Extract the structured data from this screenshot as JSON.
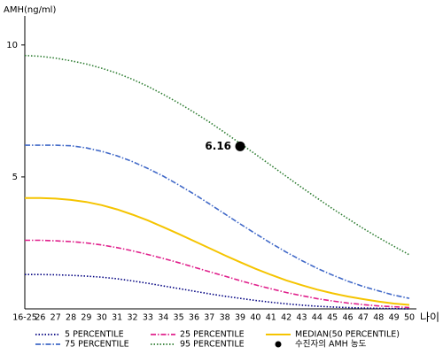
{
  "chart_data": {
    "type": "line",
    "y_label": "AMH(ng/ml)",
    "x_label": "나이",
    "categories": [
      "16-25",
      "26",
      "27",
      "28",
      "29",
      "30",
      "31",
      "32",
      "33",
      "34",
      "35",
      "36",
      "37",
      "38",
      "39",
      "40",
      "41",
      "42",
      "43",
      "44",
      "45",
      "46",
      "47",
      "48",
      "49",
      "50"
    ],
    "ylim": [
      0,
      11
    ],
    "yticks": [
      5,
      10
    ],
    "series": [
      {
        "name": "5 PERCENTILE",
        "color": "#000080",
        "style": "dotted",
        "values": [
          1.3,
          1.3,
          1.29,
          1.27,
          1.24,
          1.2,
          1.14,
          1.06,
          0.97,
          0.87,
          0.77,
          0.67,
          0.57,
          0.48,
          0.4,
          0.32,
          0.25,
          0.19,
          0.14,
          0.1,
          0.07,
          0.05,
          0.03,
          0.02,
          0.01,
          0.0
        ]
      },
      {
        "name": "25 PERCENTILE",
        "color": "#e0208c",
        "style": "dashdot",
        "values": [
          2.6,
          2.6,
          2.58,
          2.55,
          2.5,
          2.42,
          2.32,
          2.2,
          2.06,
          1.91,
          1.75,
          1.58,
          1.41,
          1.24,
          1.07,
          0.91,
          0.76,
          0.62,
          0.5,
          0.39,
          0.3,
          0.22,
          0.16,
          0.11,
          0.08,
          0.05
        ]
      },
      {
        "name": "MEDIAN(50 PERCENTILE)",
        "color": "#f5c400",
        "style": "solid",
        "values": [
          4.2,
          4.2,
          4.18,
          4.13,
          4.05,
          3.93,
          3.77,
          3.57,
          3.35,
          3.1,
          2.84,
          2.57,
          2.3,
          2.03,
          1.77,
          1.52,
          1.29,
          1.08,
          0.9,
          0.73,
          0.59,
          0.47,
          0.37,
          0.28,
          0.2,
          0.15
        ]
      },
      {
        "name": "75 PERCENTILE",
        "color": "#4169c8",
        "style": "dashdot",
        "values": [
          6.2,
          6.2,
          6.2,
          6.18,
          6.1,
          5.97,
          5.8,
          5.58,
          5.32,
          5.03,
          4.7,
          4.35,
          3.98,
          3.6,
          3.22,
          2.85,
          2.49,
          2.15,
          1.83,
          1.54,
          1.28,
          1.05,
          0.85,
          0.68,
          0.52,
          0.4
        ]
      },
      {
        "name": "95 PERCENTILE",
        "color": "#2e7d32",
        "style": "dotted",
        "values": [
          9.6,
          9.57,
          9.5,
          9.4,
          9.28,
          9.12,
          8.93,
          8.7,
          8.43,
          8.13,
          7.8,
          7.45,
          7.08,
          6.68,
          6.27,
          5.86,
          5.44,
          5.02,
          4.6,
          4.2,
          3.8,
          3.42,
          3.05,
          2.7,
          2.37,
          2.05
        ]
      }
    ],
    "marker": {
      "name": "수진자의 AMH 농도",
      "x": "39",
      "value": 6.16,
      "color": "#000000"
    }
  }
}
